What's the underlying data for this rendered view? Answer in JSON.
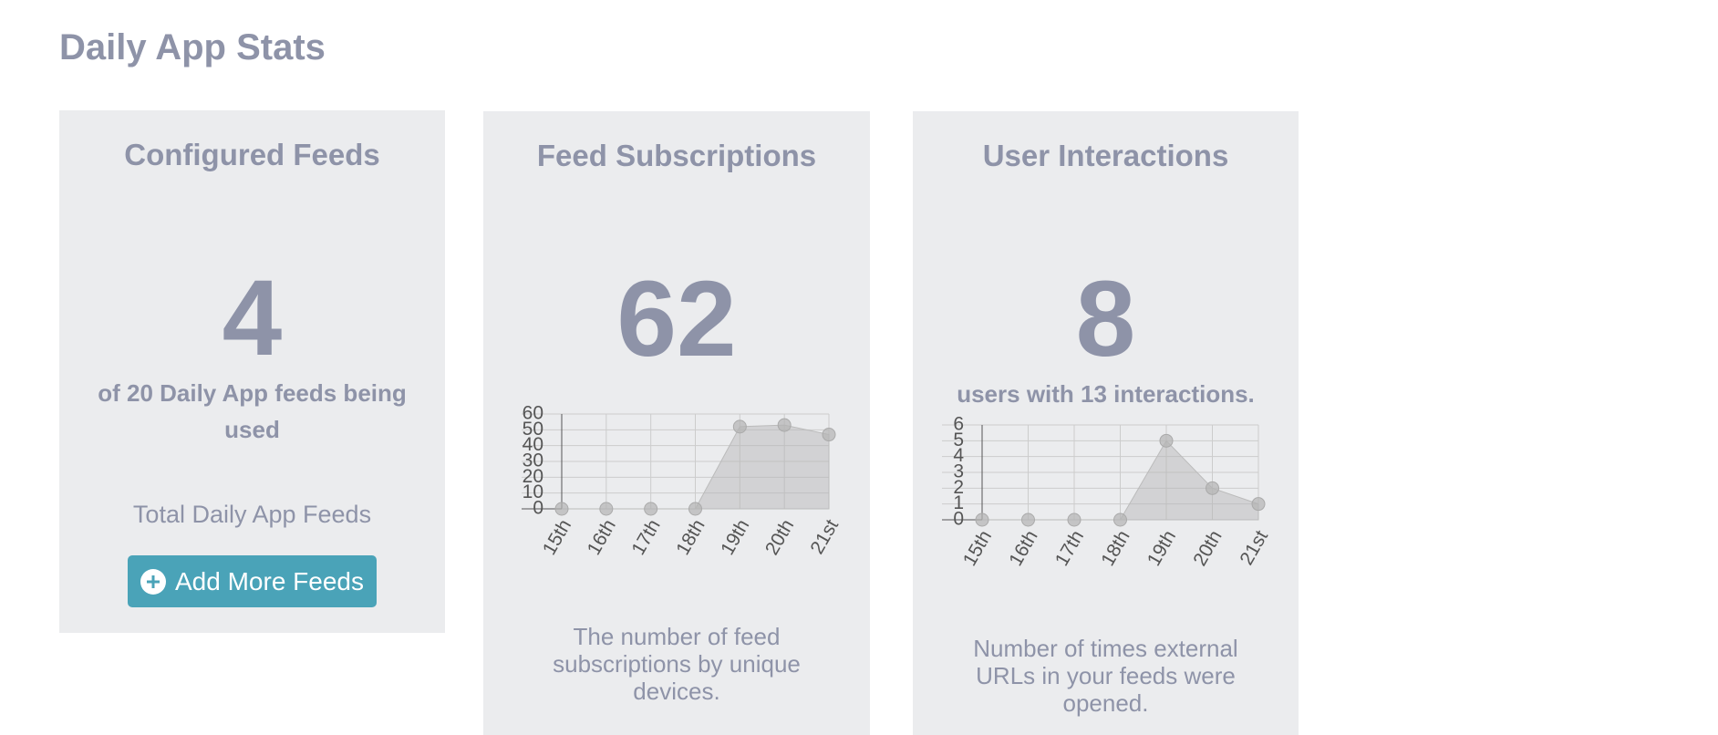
{
  "header": {
    "title": "Daily App Stats"
  },
  "cards": [
    {
      "title": "Configured Feeds",
      "value": "4",
      "subtitle": "of 20 Daily App feeds being used",
      "note": "Total Daily App Feeds",
      "button": "Add More Feeds"
    },
    {
      "title": "Feed Subscriptions",
      "value": "62",
      "caption": "The number of feed subscriptions by unique devices."
    },
    {
      "title": "User Interactions",
      "value": "8",
      "subtitle": "users with 13 interactions.",
      "caption": "Number of times external URLs in your feeds were opened."
    }
  ],
  "chart_data": [
    {
      "type": "area",
      "categories": [
        "15th",
        "16th",
        "17th",
        "18th",
        "19th",
        "20th",
        "21st"
      ],
      "values": [
        0,
        0,
        0,
        0,
        52,
        53,
        47
      ],
      "ylim": [
        0,
        60
      ],
      "yticks": [
        0,
        10,
        20,
        30,
        40,
        50,
        60
      ],
      "grid": true,
      "color": "#b4b4b4"
    },
    {
      "type": "area",
      "categories": [
        "15th",
        "16th",
        "17th",
        "18th",
        "19th",
        "20th",
        "21st"
      ],
      "values": [
        0,
        0,
        0,
        0,
        5,
        2,
        1
      ],
      "ylim": [
        0,
        6
      ],
      "yticks": [
        0,
        1,
        2,
        3,
        4,
        5,
        6
      ],
      "grid": true,
      "color": "#b4b4b4"
    }
  ]
}
